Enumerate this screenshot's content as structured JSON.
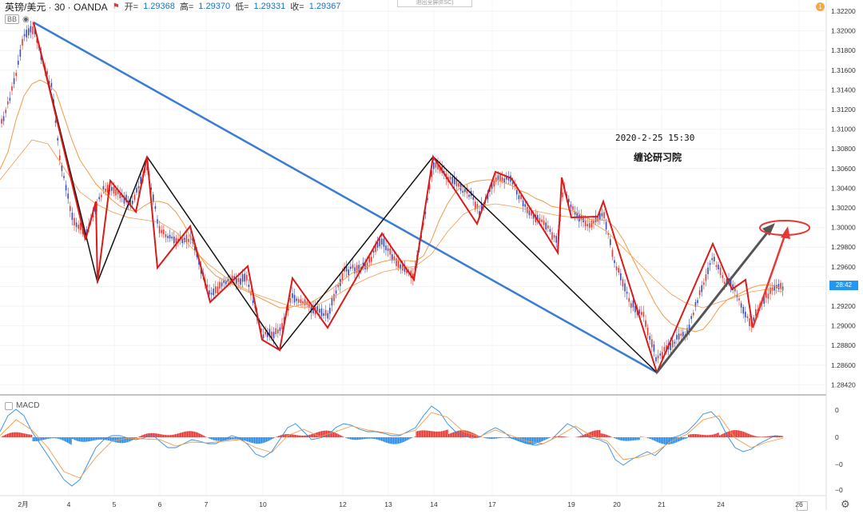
{
  "header": {
    "symbol": "英镑/美元 · 30 · OANDA",
    "open_label": "开=",
    "open": "1.29368",
    "high_label": "高=",
    "high": "1.29370",
    "low_label": "低=",
    "low": "1.29331",
    "close_label": "收=",
    "close": "1.29367",
    "flag_icon": "flag-icon"
  },
  "indicator_bb": "BB",
  "macd_label": "MACD",
  "esc_hint": "退出全屏(ESC)",
  "alert_count": "1",
  "annotation": {
    "date": "2020-2-25 15:30",
    "brand": "缠论研习院"
  },
  "price_tag": "28:42",
  "price_axis": [
    "1.32200",
    "1.32000",
    "1.31800",
    "1.31600",
    "1.31400",
    "1.31200",
    "1.31000",
    "1.30800",
    "1.30600",
    "1.30400",
    "1.30200",
    "1.30000",
    "1.29800",
    "1.29600",
    "1.29400",
    "1.29200",
    "1.29000",
    "1.28800",
    "1.28600",
    "1.28420"
  ],
  "macd_axis": [
    "0",
    "0",
    "−0",
    "−0"
  ],
  "time_axis": [
    "2月",
    "4",
    "5",
    "6",
    "7",
    "10",
    "12",
    "13",
    "14",
    "17",
    "19",
    "20",
    "21",
    "24",
    "26"
  ],
  "colors": {
    "zigzag_black": "#111111",
    "zigzag_red": "#d81b1b",
    "trend_blue": "#3a7bd5",
    "ma_orange": "#f39a4a",
    "macd_up": "#e53935",
    "macd_down": "#2b8ee8",
    "arrow_gray": "#555555",
    "arrow_red": "#e53935"
  }
}
